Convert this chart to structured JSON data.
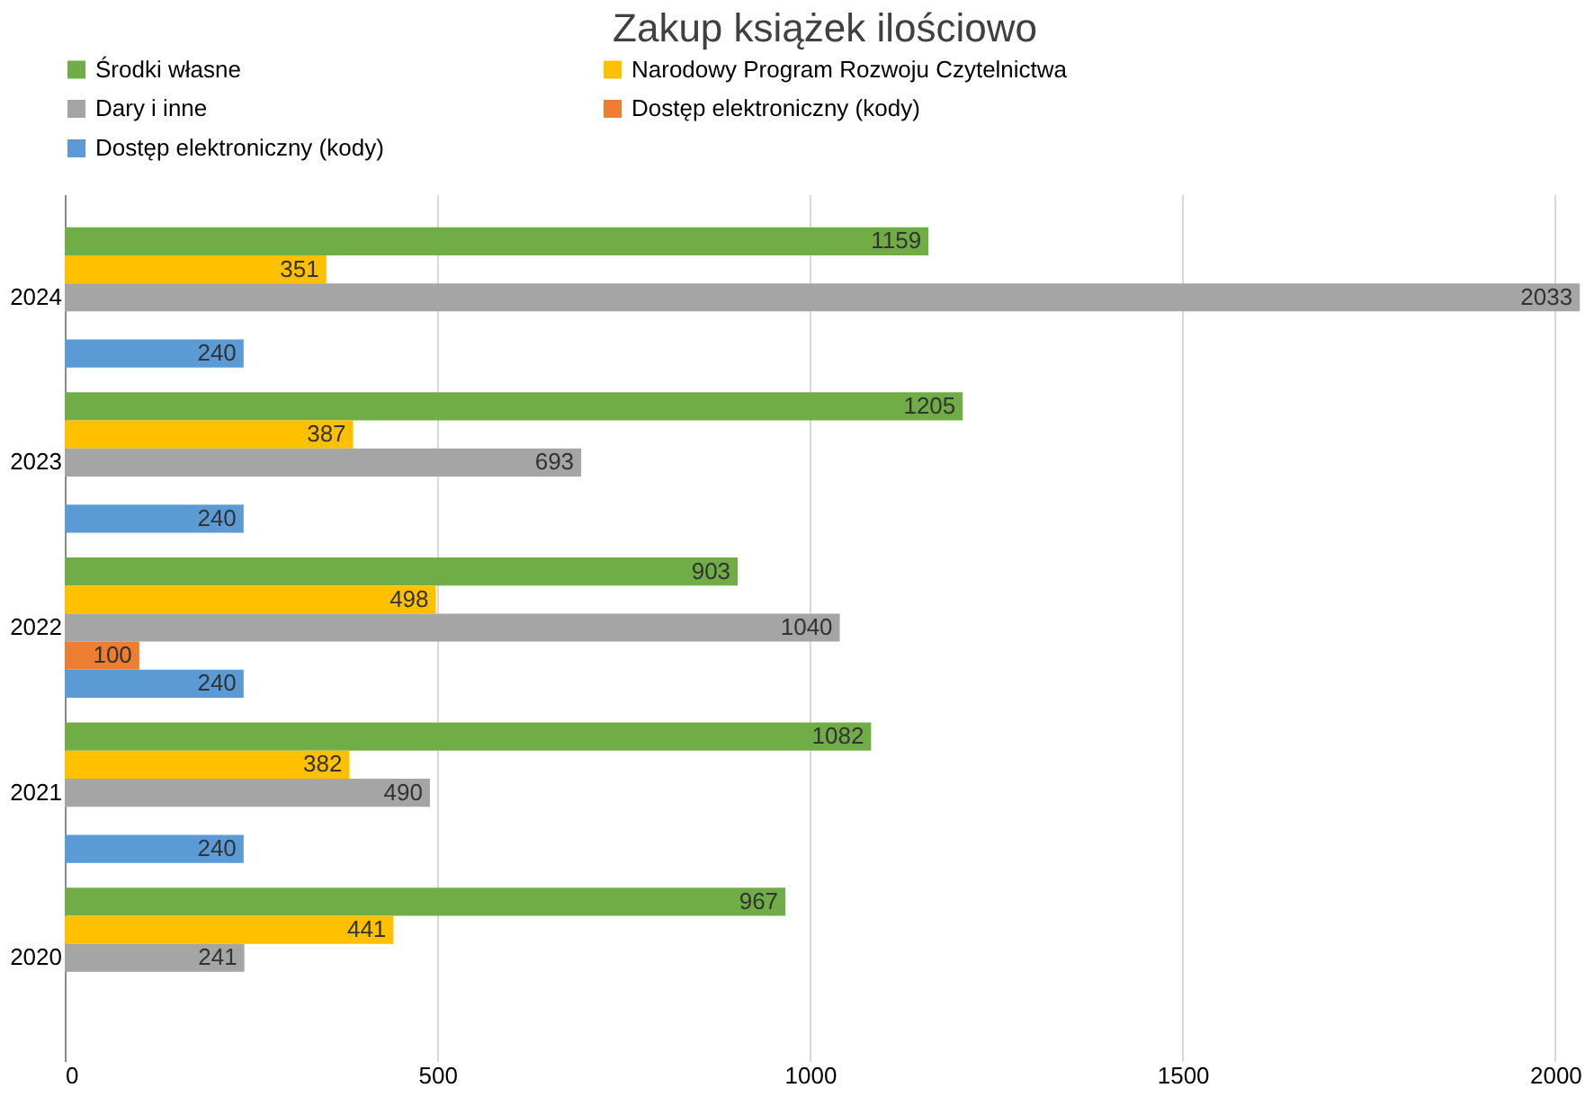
{
  "chart_data": {
    "type": "bar",
    "orientation": "horizontal",
    "title": "Zakup książek ilościowo",
    "categories": [
      "2024",
      "2023",
      "2022",
      "2021",
      "2020"
    ],
    "series": [
      {
        "name": "Środki własne",
        "color": "#70ad47",
        "values": [
          1159,
          1205,
          903,
          1082,
          967
        ]
      },
      {
        "name": "Narodowy Program Rozwoju Czytelnictwa",
        "color": "#ffc000",
        "values": [
          351,
          387,
          498,
          382,
          441
        ]
      },
      {
        "name": "Dary i inne",
        "color": "#a5a5a5",
        "values": [
          2033,
          693,
          1040,
          490,
          241
        ]
      },
      {
        "name": "Dostęp elektroniczny (kody)",
        "color": "#ed7d31",
        "values": [
          null,
          null,
          100,
          null,
          null
        ]
      },
      {
        "name": "Dostęp elektroniczny (kody)",
        "color": "#5b9bd5",
        "values": [
          240,
          240,
          240,
          240,
          null
        ]
      }
    ],
    "xlim": [
      0,
      2040
    ],
    "xticks": [
      0,
      500,
      1000,
      1500,
      2000
    ],
    "grid": "x",
    "legend": "top",
    "data_labels": true
  }
}
